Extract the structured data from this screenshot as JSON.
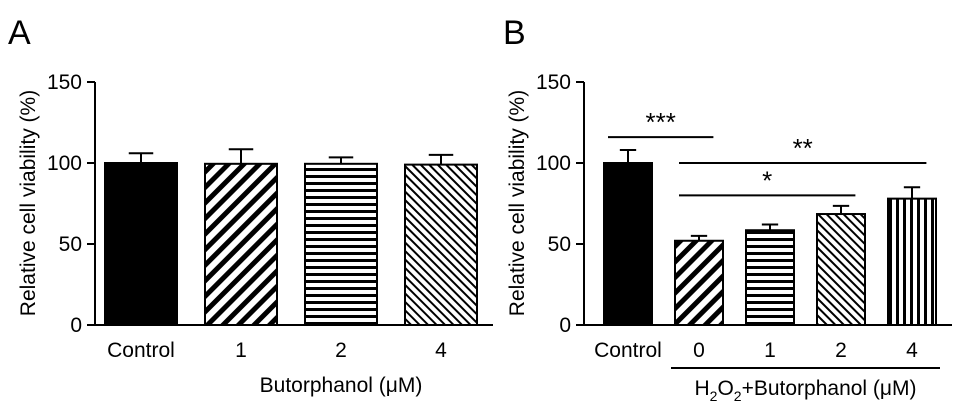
{
  "chart_data": [
    {
      "panel": "A",
      "type": "bar",
      "categories": [
        "Control",
        "1",
        "2",
        "4"
      ],
      "values": [
        100,
        99.5,
        99.5,
        99
      ],
      "errors": [
        6,
        9,
        4,
        6
      ],
      "patterns": [
        "solid",
        "diag-wide",
        "horizontal",
        "diag-narrow"
      ],
      "ylabel": "Relative cell viability (%)",
      "ylim": [
        0,
        150
      ],
      "yticks": [
        "0",
        "50",
        "100",
        "150"
      ],
      "group_label": "Butorphanol (μM)",
      "group_start": 1,
      "group_line": false,
      "significance": []
    },
    {
      "panel": "B",
      "type": "bar",
      "categories": [
        "Control",
        "0",
        "1",
        "2",
        "4"
      ],
      "values": [
        100,
        52,
        58.5,
        68.5,
        78
      ],
      "errors": [
        8,
        3,
        3.5,
        5,
        7
      ],
      "patterns": [
        "solid",
        "diag-wide",
        "horizontal",
        "diag-narrow",
        "vertical"
      ],
      "ylabel": "Relative cell viability (%)",
      "ylim": [
        0,
        150
      ],
      "yticks": [
        "0",
        "50",
        "100",
        "150"
      ],
      "group_label_parts": [
        "H",
        "2",
        "O",
        "2",
        "+Butorphanol (μM)"
      ],
      "group_start": 1,
      "group_line": true,
      "significance": [
        {
          "from": 0,
          "to": 1,
          "label": "***",
          "y": 116
        },
        {
          "from": 1,
          "to": 4,
          "label": "**",
          "y": 100
        },
        {
          "from": 1,
          "to": 3,
          "label": "*",
          "y": 80
        }
      ]
    }
  ]
}
